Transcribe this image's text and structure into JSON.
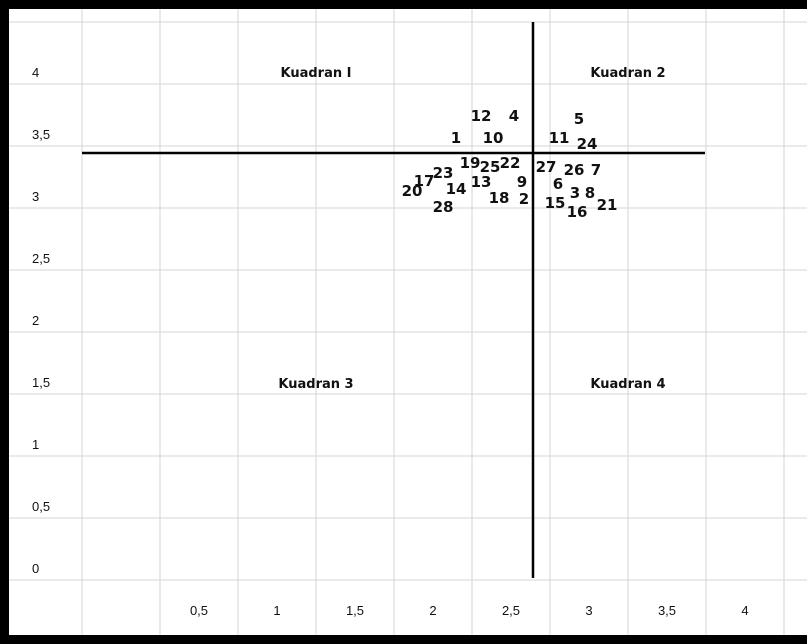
{
  "chart_data": {
    "type": "scatter",
    "title": "",
    "xlabel": "",
    "ylabel": "",
    "x_ticks": [
      "0,5",
      "1",
      "1,5",
      "2",
      "2,5",
      "3",
      "3,5",
      "4"
    ],
    "y_ticks": [
      "4",
      "3,5",
      "3",
      "2,5",
      "2",
      "1,5",
      "1",
      "0,5",
      "0"
    ],
    "xlim": [
      0,
      4.5
    ],
    "ylim": [
      -0.25,
      4.25
    ],
    "grid": true,
    "divider": {
      "x": 2.77,
      "y": 3.37,
      "x_range": [
        0,
        4.0
      ],
      "y_range": [
        0,
        4.2
      ]
    },
    "quadrant_labels": [
      {
        "text": "Kuadran I",
        "x": 1.5,
        "y": 3.97
      },
      {
        "text": "Kuadran 2",
        "x": 3.5,
        "y": 3.97
      },
      {
        "text": "Kuadran 3",
        "x": 1.5,
        "y": 1.47
      },
      {
        "text": "Kuadran 4",
        "x": 3.5,
        "y": 1.47
      }
    ],
    "points": [
      {
        "label": "1",
        "x": 2.35,
        "y": 3.45
      },
      {
        "label": "2",
        "x": 2.75,
        "y": 3.0
      },
      {
        "label": "3",
        "x": 3.0,
        "y": 3.04
      },
      {
        "label": "4",
        "x": 2.65,
        "y": 3.65
      },
      {
        "label": "5",
        "x": 2.96,
        "y": 3.63
      },
      {
        "label": "6",
        "x": 2.89,
        "y": 3.12
      },
      {
        "label": "7",
        "x": 3.17,
        "y": 3.23
      },
      {
        "label": "8",
        "x": 3.07,
        "y": 3.02
      },
      {
        "label": "9",
        "x": 2.73,
        "y": 3.14
      },
      {
        "label": "10",
        "x": 2.54,
        "y": 3.46
      },
      {
        "label": "11",
        "x": 2.87,
        "y": 3.46
      },
      {
        "label": "12",
        "x": 2.46,
        "y": 3.65
      },
      {
        "label": "13",
        "x": 2.48,
        "y": 3.12
      },
      {
        "label": "14",
        "x": 2.32,
        "y": 3.1
      },
      {
        "label": "15",
        "x": 2.93,
        "y": 2.97
      },
      {
        "label": "16",
        "x": 3.05,
        "y": 2.93
      },
      {
        "label": "17",
        "x": 2.15,
        "y": 3.13
      },
      {
        "label": "18",
        "x": 2.6,
        "y": 3.0
      },
      {
        "label": "19",
        "x": 2.43,
        "y": 3.3
      },
      {
        "label": "20",
        "x": 2.1,
        "y": 3.05
      },
      {
        "label": "21",
        "x": 3.23,
        "y": 2.96
      },
      {
        "label": "22",
        "x": 2.63,
        "y": 3.3
      },
      {
        "label": "23",
        "x": 2.25,
        "y": 3.19
      },
      {
        "label": "24",
        "x": 3.03,
        "y": 3.44
      },
      {
        "label": "25",
        "x": 2.51,
        "y": 3.26
      },
      {
        "label": "26",
        "x": 3.02,
        "y": 3.23
      },
      {
        "label": "27",
        "x": 2.85,
        "y": 3.26
      },
      {
        "label": "28",
        "x": 2.24,
        "y": 2.95
      }
    ]
  }
}
